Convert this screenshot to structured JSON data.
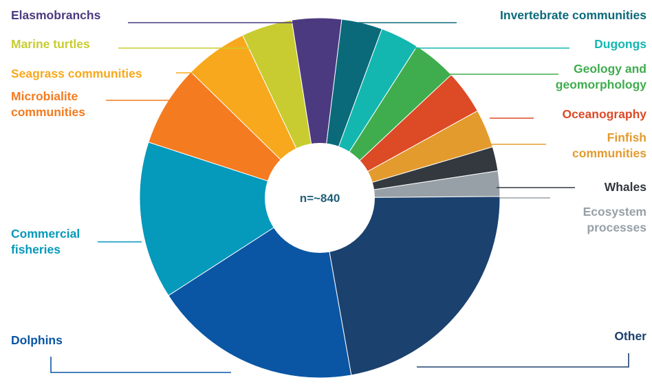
{
  "chart_data": {
    "type": "pie",
    "center_label": "n=~840",
    "slices": [
      {
        "name": "Elasmobranchs",
        "value": 4.5,
        "color": "#4c3a80",
        "label_lines": [
          "Elasmobranchs"
        ]
      },
      {
        "name": "Invertebrate communities",
        "value": 3.7,
        "color": "#0a6a7a",
        "label_lines": [
          "Invertebrate communities"
        ]
      },
      {
        "name": "Dugongs",
        "value": 3.5,
        "color": "#13b7b0",
        "label_lines": [
          "Dugongs"
        ]
      },
      {
        "name": "Geology and geomorphology",
        "value": 4.0,
        "color": "#3fad4e",
        "label_lines": [
          "Geology and",
          "geomorphology"
        ]
      },
      {
        "name": "Oceanography",
        "value": 4.0,
        "color": "#dc4a26",
        "label_lines": [
          "Oceanography"
        ]
      },
      {
        "name": "Finfish communities",
        "value": 3.5,
        "color": "#e39b2d",
        "label_lines": [
          "Finfish",
          "communities"
        ]
      },
      {
        "name": "Whales",
        "value": 2.2,
        "color": "#33393f",
        "label_lines": [
          "Whales"
        ]
      },
      {
        "name": "Ecosystem processes",
        "value": 2.3,
        "color": "#98a0a7",
        "label_lines": [
          "Ecosystem",
          "processes"
        ]
      },
      {
        "name": "Other",
        "value": 22.6,
        "color": "#1b416e",
        "label_lines": [
          "Other"
        ]
      },
      {
        "name": "Dolphins",
        "value": 18.9,
        "color": "#0a56a4",
        "label_lines": [
          "Dolphins"
        ]
      },
      {
        "name": "Commercial fisheries",
        "value": 14.3,
        "color": "#0599bb",
        "label_lines": [
          "Commercial",
          "fisheries"
        ]
      },
      {
        "name": "Microbialite communities",
        "value": 7.4,
        "color": "#f47b20",
        "label_lines": [
          "Microbialite",
          "communities"
        ]
      },
      {
        "name": "Seagrass communities",
        "value": 5.7,
        "color": "#f8a81c",
        "label_lines": [
          "Seagrass communities"
        ]
      },
      {
        "name": "Marine turtles",
        "value": 4.6,
        "color": "#c8cc30",
        "label_lines": [
          "Marine turtles"
        ]
      }
    ]
  }
}
